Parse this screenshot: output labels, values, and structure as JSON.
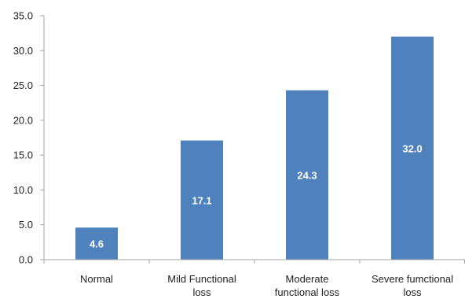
{
  "chart_data": {
    "type": "bar",
    "categories": [
      [
        "Normal"
      ],
      [
        "Mild Functional",
        "loss"
      ],
      [
        "Moderate",
        "functional loss"
      ],
      [
        "Severe fumctional",
        "loss"
      ]
    ],
    "values": [
      4.6,
      17.1,
      24.3,
      32.0
    ],
    "data_labels": [
      "4.6",
      "17.1",
      "24.3",
      "32.0"
    ],
    "yticks": [
      "0.0",
      "5.0",
      "10.0",
      "15.0",
      "20.0",
      "25.0",
      "30.0",
      "35.0"
    ],
    "ylim": [
      0,
      35
    ],
    "bar_color": "#4f81bd",
    "axis_color": "#a6a6a6",
    "grid": false,
    "legend": "none",
    "title": "",
    "xlabel": "",
    "ylabel": ""
  }
}
